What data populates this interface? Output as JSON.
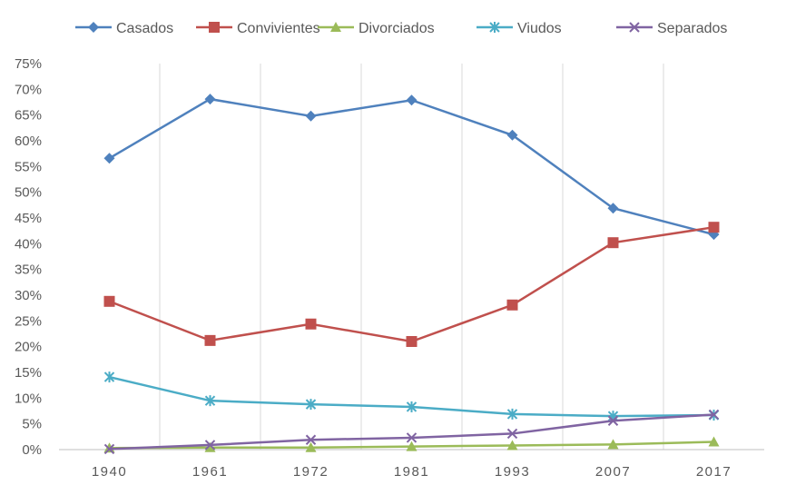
{
  "chart_data": {
    "type": "line",
    "title": "",
    "xlabel": "",
    "ylabel": "",
    "categories": [
      "1940",
      "1961",
      "1972",
      "1981",
      "1993",
      "2007",
      "2017"
    ],
    "ylim": [
      0,
      75
    ],
    "yticks": [
      "0%",
      "5%",
      "10%",
      "15%",
      "20%",
      "25%",
      "30%",
      "35%",
      "40%",
      "45%",
      "50%",
      "55%",
      "60%",
      "65%",
      "70%",
      "75%"
    ],
    "grid": "vertical",
    "legend_position": "top",
    "series": [
      {
        "name": "Casados",
        "color": "#4F81BD",
        "marker": "diamond",
        "values": [
          56.6,
          68.1,
          64.8,
          67.9,
          61.1,
          46.9,
          41.8
        ]
      },
      {
        "name": "Convivientes",
        "color": "#C0504D",
        "marker": "square",
        "values": [
          28.8,
          21.2,
          24.4,
          21.0,
          28.1,
          40.2,
          43.2
        ]
      },
      {
        "name": "Divorciados",
        "color": "#9BBB59",
        "marker": "triangle",
        "values": [
          0.3,
          0.4,
          0.4,
          0.6,
          0.8,
          1.0,
          1.5
        ]
      },
      {
        "name": "Viudos",
        "color": "#4BACC6",
        "marker": "star",
        "values": [
          14.1,
          9.5,
          8.8,
          8.3,
          6.9,
          6.5,
          6.7
        ]
      },
      {
        "name": "Separados",
        "color": "#8064A2",
        "marker": "x",
        "values": [
          0.1,
          0.9,
          1.9,
          2.3,
          3.1,
          5.6,
          6.8
        ]
      }
    ]
  }
}
